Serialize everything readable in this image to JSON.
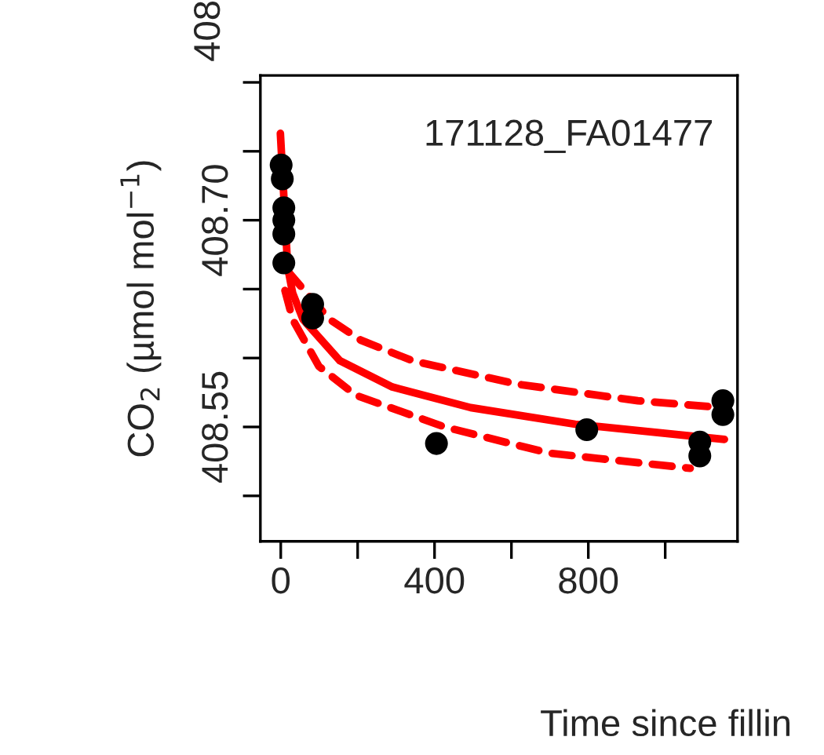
{
  "chart_data": {
    "type": "scatter",
    "xlabel": "Time since fillin",
    "ylabel": "CO$_{2}$ (µmol mol$^{−1}$)",
    "annotations": [
      "171128_FA01477",
      "408"
    ],
    "xlim": [
      -53,
      1188
    ],
    "ylim": [
      408.467,
      408.805
    ],
    "xticks": [
      0,
      {
        "value": 200,
        "label": null
      },
      400,
      {
        "value": 600,
        "label": null
      },
      800,
      {
        "value": 1000,
        "label": null
      }
    ],
    "yticks": [
      {
        "value": 408.5,
        "label": null
      },
      {
        "value": 408.55,
        "label": "408.55"
      },
      {
        "value": 408.6,
        "label": null
      },
      {
        "value": 408.65,
        "label": null
      },
      {
        "value": 408.7,
        "label": "408.70"
      },
      {
        "value": 408.75,
        "label": null
      },
      {
        "value": 408.8,
        "label": null
      }
    ],
    "grid": false,
    "series": [
      {
        "color": "#000000",
        "marker": "circle",
        "x": [
          1,
          4,
          8,
          8,
          8,
          8,
          83,
          83,
          405,
          796,
          1090,
          1090,
          1150,
          1150
        ],
        "values": [
          408.74,
          408.73,
          408.709,
          408.7,
          408.69,
          408.669,
          408.639,
          408.629,
          408.538,
          408.548,
          408.539,
          408.529,
          408.569,
          408.559
        ]
      },
      {
        "type": "line",
        "color": "#ff0000",
        "line_style": "solid",
        "x": [
          -1,
          18,
          31,
          58,
          154,
          290,
          494,
          766,
          1154
        ],
        "values": [
          408.763,
          408.666,
          408.647,
          408.628,
          408.598,
          408.579,
          408.564,
          408.552,
          408.541
        ]
      },
      {
        "type": "line",
        "color": "#ff0000",
        "line_style": "dashed",
        "x": [
          18,
          127,
          208,
          343,
          616,
          929,
          1147
        ],
        "values": [
          408.663,
          408.628,
          408.613,
          408.598,
          408.581,
          408.569,
          408.564
        ]
      },
      {
        "type": "line",
        "color": "#ff0000",
        "line_style": "dashed",
        "x": [
          11,
          31,
          99,
          195,
          426,
          698,
          1065
        ],
        "values": [
          408.649,
          408.628,
          408.594,
          408.573,
          408.55,
          408.531,
          408.52
        ]
      }
    ]
  }
}
